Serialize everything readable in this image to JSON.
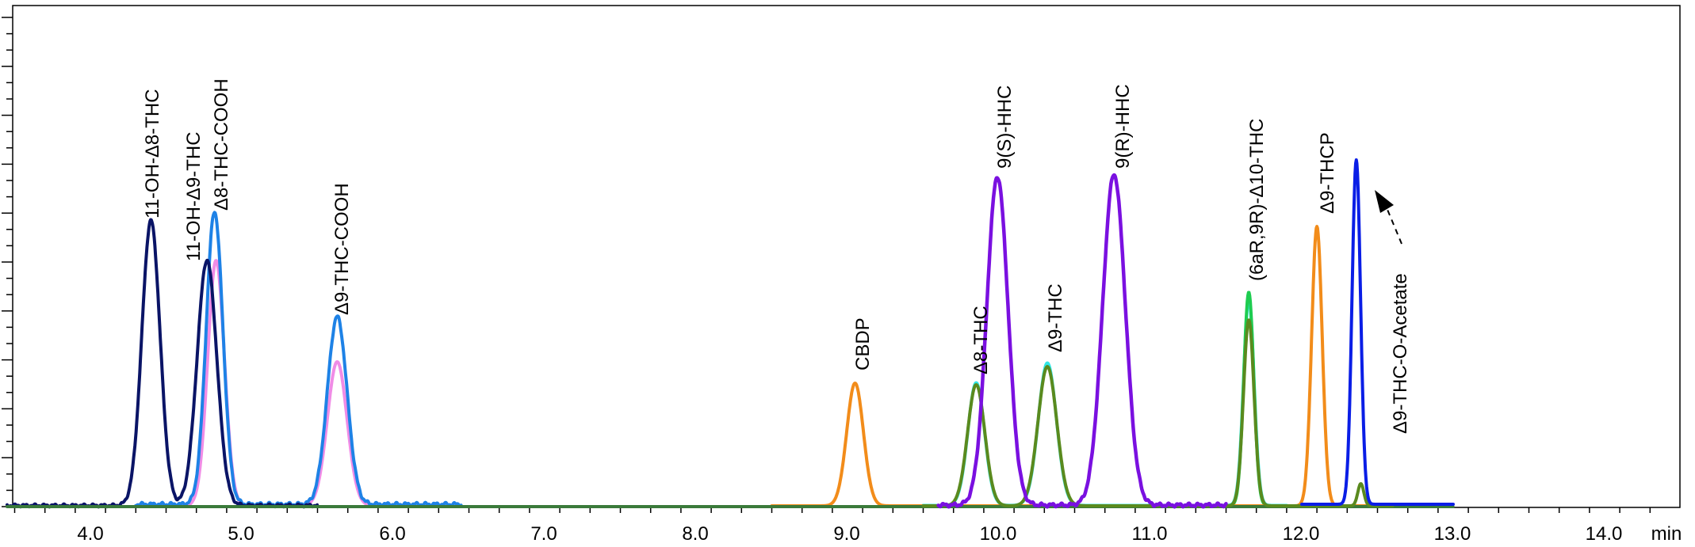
{
  "chart_data": {
    "type": "line",
    "title": "",
    "xlabel": "min",
    "ylabel": "",
    "xlim": [
      3.45,
      14.5
    ],
    "x_ticks": [
      "4.0",
      "5.0",
      "6.0",
      "7.0",
      "8.0",
      "9.0",
      "10.0",
      "11.0",
      "12.0",
      "13.0",
      "14.0"
    ],
    "x_unit_label": "min",
    "grid": false,
    "legend": null,
    "y_ticks_labeled": false,
    "peaks": [
      {
        "name": "11-OH-Δ8-THC",
        "rt": 4.4,
        "rel_height": 0.57,
        "color": "#0a1466"
      },
      {
        "name": "11-OH-Δ9-THC",
        "rt": 4.77,
        "rel_height": 0.49,
        "color": "#0a1466"
      },
      {
        "name": "Δ8-THC-COOH",
        "rt": 4.82,
        "rel_height": 0.59,
        "color": "#1e82e6"
      },
      {
        "name": "Δ9-THC-COOH",
        "rt": 5.63,
        "rel_height": 0.38,
        "color": "#1e82e6"
      },
      {
        "name": "CBDP",
        "rt": 9.05,
        "rel_height": 0.25,
        "color": "#f28c1a"
      },
      {
        "name": "Δ8-THC",
        "rt": 9.85,
        "rel_height": 0.25,
        "color": "#5a8a1e"
      },
      {
        "name": "9(S)-HHC",
        "rt": 9.99,
        "rel_height": 0.66,
        "color": "#7a10e0"
      },
      {
        "name": "Δ9-THC",
        "rt": 10.32,
        "rel_height": 0.29,
        "color": "#5a8a1e"
      },
      {
        "name": "9(R)-HHC",
        "rt": 10.76,
        "rel_height": 0.66,
        "color": "#7a10e0"
      },
      {
        "name": "(6aR,9R)-Δ10-THC",
        "rt": 11.65,
        "rel_height": 0.43,
        "color": "#1ecc50"
      },
      {
        "name": "Δ9-THCP",
        "rt": 12.1,
        "rel_height": 0.55,
        "color": "#f28c1a"
      },
      {
        "name": "Δ9-THC-O-Acetate",
        "rt": 12.36,
        "rel_height": 0.68,
        "color": "#0a1ee6"
      }
    ],
    "series": [
      {
        "name": "navy trace",
        "color": "#0a1466",
        "peaks_rt": [
          4.4,
          4.77
        ],
        "x_range": [
          3.45,
          5.5
        ]
      },
      {
        "name": "blue trace",
        "color": "#1e82e6",
        "peaks_rt": [
          4.82,
          5.63
        ],
        "x_range": [
          4.3,
          6.45
        ]
      },
      {
        "name": "pink trace",
        "color": "#f08ce6",
        "peaks_rt": [
          4.83,
          5.63
        ],
        "x_range": [
          4.3,
          6.0
        ]
      },
      {
        "name": "orange trace",
        "color": "#f28c1a",
        "peaks_rt": [
          9.05,
          12.1
        ],
        "x_range": [
          8.5,
          12.6
        ]
      },
      {
        "name": "olive trace",
        "color": "#5a8a1e",
        "peaks_rt": [
          9.85,
          10.32,
          11.65,
          12.39
        ],
        "x_range": [
          3.45,
          13.0
        ]
      },
      {
        "name": "cyan trace",
        "color": "#30e6e6",
        "peaks_rt": [
          9.85,
          10.32,
          11.65
        ],
        "x_range": [
          9.5,
          11.9
        ]
      },
      {
        "name": "green trace",
        "color": "#1ecc50",
        "peaks_rt": [
          11.65
        ],
        "x_range": [
          11.3,
          12.0
        ]
      },
      {
        "name": "purple trace",
        "color": "#7a10e0",
        "peaks_rt": [
          9.99,
          10.76
        ],
        "x_range": [
          9.6,
          11.5
        ]
      },
      {
        "name": "blue acetate trace",
        "color": "#0a1ee6",
        "peaks_rt": [
          12.36
        ],
        "x_range": [
          12.0,
          13.0
        ]
      }
    ],
    "annotations": [
      {
        "text": "Δ9-THC-O-Acetate",
        "type": "dashed-arrow",
        "points_to_rt": 12.36
      }
    ]
  },
  "labels": {
    "x_ticks": [
      "4.0",
      "5.0",
      "6.0",
      "7.0",
      "8.0",
      "9.0",
      "10.0",
      "11.0",
      "12.0",
      "13.0",
      "14.0"
    ],
    "x_unit": "min",
    "peaks": {
      "p1": "11-OH-Δ8-THC",
      "p2": "11-OH-Δ9-THC",
      "p3": "Δ8-THC-COOH",
      "p4": "Δ9-THC-COOH",
      "p5": "CBDP",
      "p6": "Δ8-THC",
      "p7": "9(S)-HHC",
      "p8": "Δ9-THC",
      "p9": "9(R)-HHC",
      "p10": "(6aR,9R)-Δ10-THC",
      "p11": "Δ9-THCP",
      "p12": "Δ9-THC-O-Acetate"
    }
  }
}
